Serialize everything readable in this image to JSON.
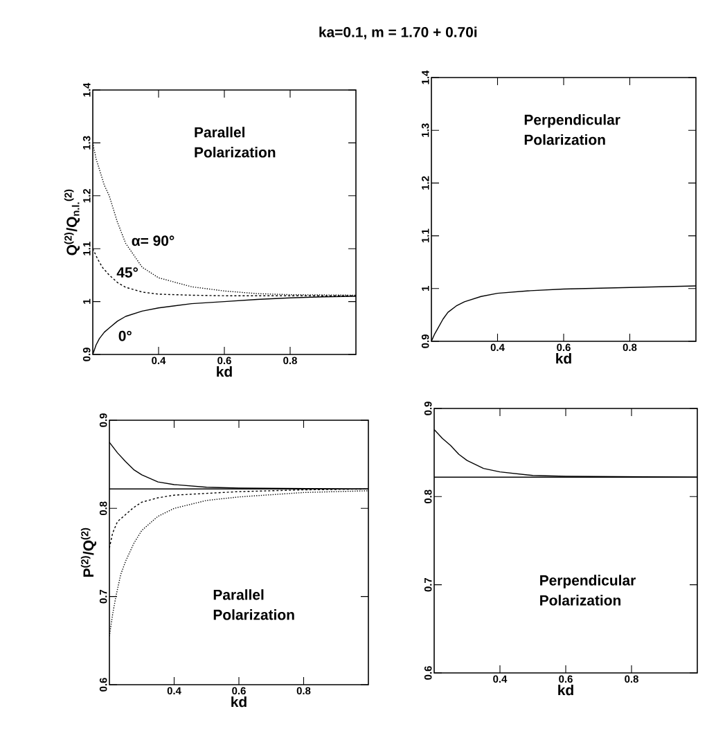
{
  "chart_data": [
    {
      "type": "line",
      "title": "ka=0.1, m = 1.70 + 0.70i",
      "xlabel": "kd",
      "ylabel": "Q$^{(2)}$/Q$_{n.l.}$$^{(2)}$",
      "xlim": [
        0.2,
        1.0
      ],
      "ylim": [
        0.9,
        1.4
      ],
      "xticks": [
        0.4,
        0.6,
        0.8
      ],
      "yticks": [
        0.9,
        1,
        1.1,
        1.2,
        1.3,
        1.4
      ],
      "series": [
        {
          "color": "#000000",
          "line_style": "dotted",
          "x": [
            0.2,
            0.21,
            0.22,
            0.235,
            0.25,
            0.275,
            0.3,
            0.35,
            0.4,
            0.5,
            0.6,
            0.7,
            0.8,
            1.0
          ],
          "values": [
            1.3,
            1.27,
            1.25,
            1.22,
            1.2,
            1.15,
            1.11,
            1.065,
            1.045,
            1.028,
            1.02,
            1.015,
            1.013,
            1.012
          ]
        },
        {
          "color": "#000000",
          "line_style": "dashed",
          "x": [
            0.2,
            0.215,
            0.23,
            0.25,
            0.275,
            0.3,
            0.35,
            0.4,
            0.5,
            0.6,
            1.0
          ],
          "values": [
            1.1,
            1.08,
            1.064,
            1.05,
            1.036,
            1.027,
            1.018,
            1.014,
            1.012,
            1.011,
            1.011
          ]
        },
        {
          "color": "#000000",
          "line_style": "solid",
          "x": [
            0.2,
            0.21,
            0.22,
            0.235,
            0.25,
            0.275,
            0.3,
            0.35,
            0.4,
            0.5,
            0.6,
            0.7,
            0.8,
            0.9,
            1.0
          ],
          "values": [
            0.9,
            0.918,
            0.93,
            0.942,
            0.95,
            0.963,
            0.972,
            0.982,
            0.988,
            0.996,
            1.0,
            1.004,
            1.007,
            1.009,
            1.01
          ]
        }
      ],
      "annotations": [
        "Parallel Polarization",
        "α= 90°",
        "45°",
        "0°"
      ]
    },
    {
      "type": "line",
      "xlabel": "kd",
      "xlim": [
        0.2,
        1.0
      ],
      "ylim": [
        0.9,
        1.4
      ],
      "xticks": [
        0.4,
        0.6,
        0.8
      ],
      "yticks": [
        0.9,
        1,
        1.1,
        1.2,
        1.3,
        1.4
      ],
      "series": [
        {
          "color": "#000000",
          "line_style": "solid",
          "x": [
            0.2,
            0.21,
            0.22,
            0.235,
            0.25,
            0.275,
            0.3,
            0.35,
            0.4,
            0.5,
            0.6,
            0.8,
            1.0
          ],
          "values": [
            0.9,
            0.914,
            0.925,
            0.942,
            0.955,
            0.967,
            0.975,
            0.985,
            0.991,
            0.996,
            0.999,
            1.002,
            1.005
          ]
        }
      ],
      "annotations": [
        "Perpendicular Polarization"
      ]
    },
    {
      "type": "line",
      "xlabel": "kd",
      "ylabel": "P$^{(2)}$/Q$^{(2)}$",
      "xlim": [
        0.2,
        1.0
      ],
      "ylim": [
        0.6,
        0.9
      ],
      "xticks": [
        0.4,
        0.6,
        0.8
      ],
      "yticks": [
        0.6,
        0.7,
        0.8,
        0.9
      ],
      "series": [
        {
          "color": "#000000",
          "line_style": "solid",
          "x": [
            0.2,
            0.225,
            0.25,
            0.275,
            0.3,
            0.35,
            0.4,
            0.5,
            0.6,
            1.0
          ],
          "values": [
            0.875,
            0.863,
            0.853,
            0.844,
            0.838,
            0.83,
            0.827,
            0.824,
            0.823,
            0.822
          ]
        },
        {
          "color": "#000000",
          "line_style": "solid",
          "x": [
            0.2,
            1.0
          ],
          "values": [
            0.822,
            0.822
          ]
        },
        {
          "color": "#000000",
          "line_style": "dashed",
          "x": [
            0.2,
            0.21,
            0.225,
            0.25,
            0.275,
            0.3,
            0.35,
            0.4,
            0.5,
            0.6,
            0.8,
            1.0
          ],
          "values": [
            0.755,
            0.772,
            0.785,
            0.793,
            0.801,
            0.807,
            0.812,
            0.815,
            0.817,
            0.819,
            0.821,
            0.822
          ]
        },
        {
          "color": "#000000",
          "line_style": "dotted",
          "x": [
            0.2,
            0.21,
            0.22,
            0.235,
            0.25,
            0.275,
            0.3,
            0.35,
            0.4,
            0.5,
            0.6,
            0.8,
            1.0
          ],
          "values": [
            0.655,
            0.68,
            0.7,
            0.725,
            0.74,
            0.76,
            0.775,
            0.791,
            0.8,
            0.809,
            0.813,
            0.818,
            0.82
          ]
        }
      ],
      "annotations": [
        "Parallel Polarization"
      ]
    },
    {
      "type": "line",
      "xlabel": "kd",
      "xlim": [
        0.2,
        1.0
      ],
      "ylim": [
        0.6,
        0.9
      ],
      "xticks": [
        0.4,
        0.6,
        0.8
      ],
      "yticks": [
        0.6,
        0.7,
        0.8,
        0.9
      ],
      "series": [
        {
          "color": "#000000",
          "line_style": "solid",
          "x": [
            0.2,
            0.225,
            0.25,
            0.275,
            0.3,
            0.35,
            0.4,
            0.5,
            0.6,
            1.0
          ],
          "values": [
            0.876,
            0.866,
            0.858,
            0.848,
            0.841,
            0.832,
            0.828,
            0.824,
            0.823,
            0.822
          ]
        },
        {
          "color": "#000000",
          "line_style": "solid",
          "x": [
            0.2,
            1.0
          ],
          "values": [
            0.822,
            0.822
          ]
        }
      ],
      "annotations": [
        "Perpendicular Polarization"
      ]
    }
  ]
}
